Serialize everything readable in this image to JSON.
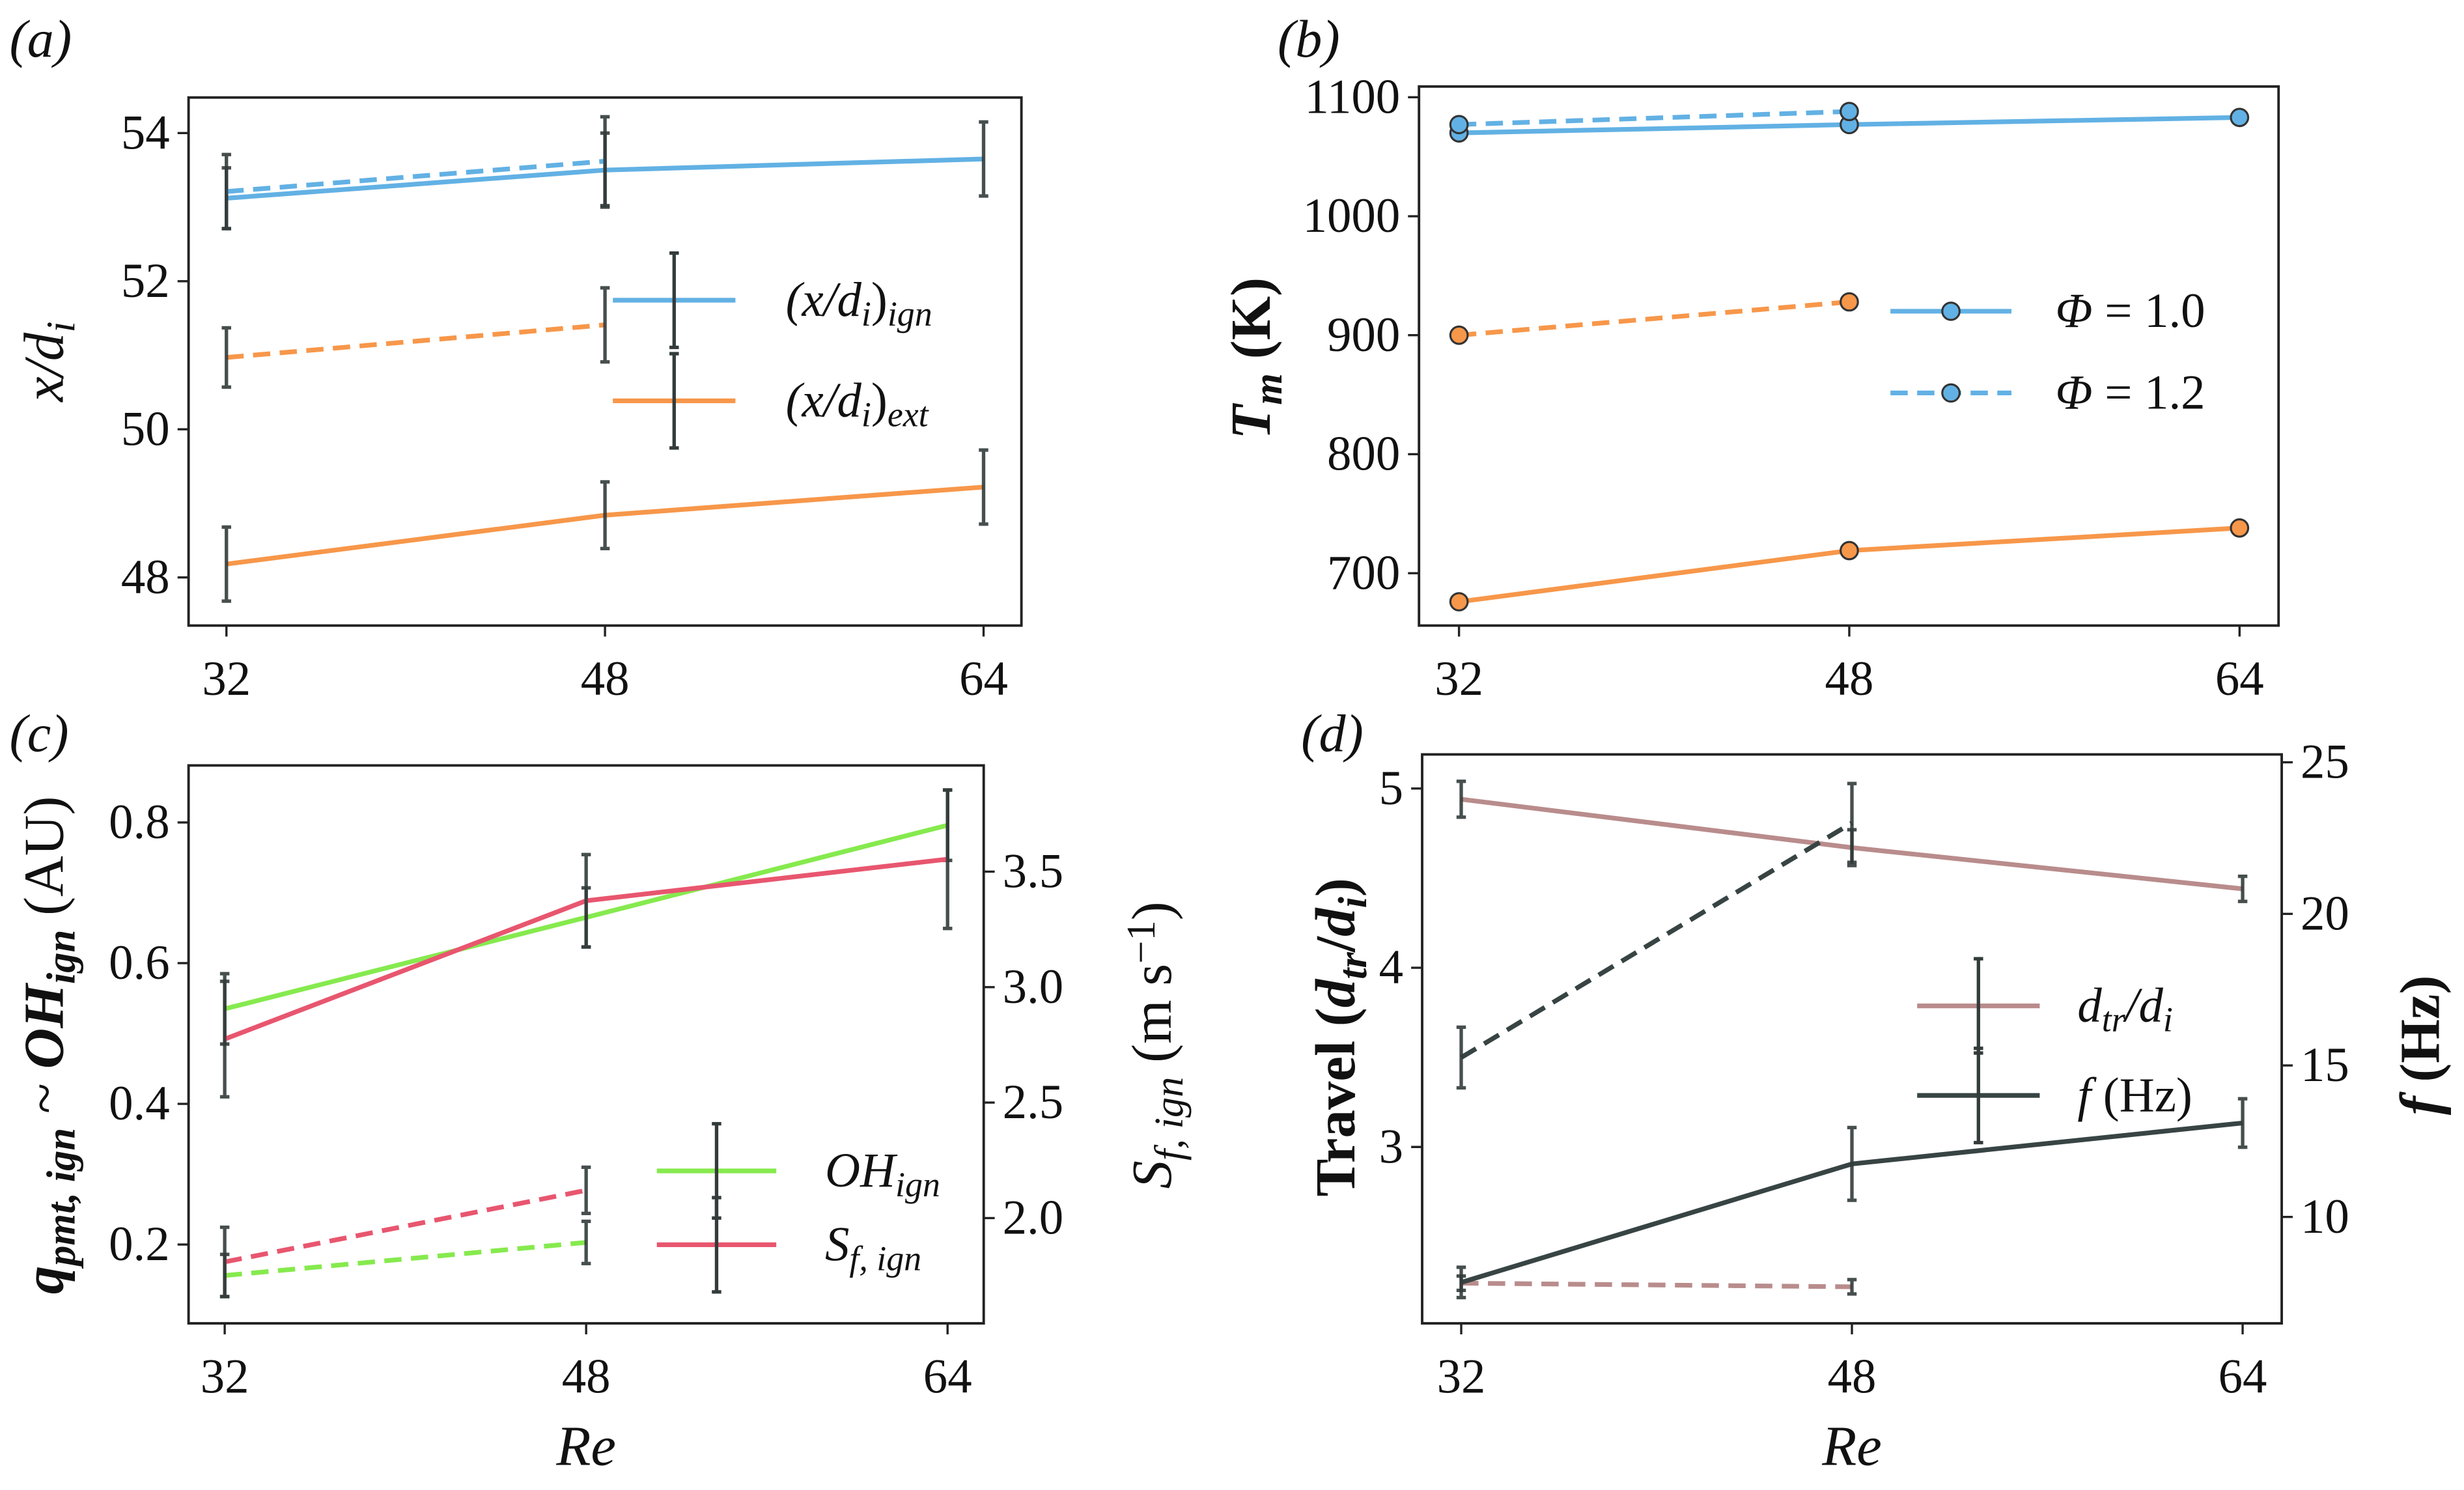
{
  "colors": {
    "blue": "#62b1e4",
    "orange": "#f7974a",
    "green": "#86ea4e",
    "red": "#e8566f",
    "pink": "#b98c8c",
    "dark": "#384444",
    "errorbar": "#333b3b",
    "marker_edge": "#333333"
  },
  "chart_data": [
    {
      "type": "line",
      "panel_label": "(a)",
      "ylabel": [
        {
          "t": "x/d",
          "i": true
        },
        {
          "t": "i",
          "sub": true,
          "i": true
        }
      ],
      "xlabel": [],
      "xlim": [
        30.4,
        65.6
      ],
      "ylim": [
        47.35,
        54.48
      ],
      "xticks": [
        32,
        48,
        64
      ],
      "yticks": [
        48,
        50,
        52,
        54
      ],
      "grid": false,
      "legend_position": "center-right",
      "series": [
        {
          "name_parts": [
            {
              "t": "(x/d",
              "i": true
            },
            {
              "t": "i",
              "sub": true,
              "i": true
            },
            {
              "t": ")"
            },
            {
              "t": "ign",
              "sub": true,
              "i": true
            }
          ],
          "color": "blue",
          "dash": false,
          "x": [
            32,
            48,
            64
          ],
          "y": [
            53.12,
            53.5,
            53.65
          ],
          "err": [
            0.41,
            0.5,
            0.5
          ],
          "legend": true
        },
        {
          "color": "blue",
          "dash": true,
          "x": [
            32,
            48
          ],
          "y": [
            53.21,
            53.62
          ],
          "err": [
            0.5,
            0.6
          ]
        },
        {
          "name_parts": [
            {
              "t": "(x/d",
              "i": true
            },
            {
              "t": "i",
              "sub": true,
              "i": true
            },
            {
              "t": ")"
            },
            {
              "t": "ext",
              "sub": true,
              "i": true
            }
          ],
          "color": "orange",
          "dash": false,
          "x": [
            32,
            48,
            64
          ],
          "y": [
            48.18,
            48.84,
            49.22
          ],
          "err": [
            0.5,
            0.45,
            0.5
          ],
          "legend": true
        },
        {
          "color": "orange",
          "dash": true,
          "x": [
            32,
            48
          ],
          "y": [
            50.97,
            51.41
          ],
          "err": [
            0.4,
            0.5
          ]
        }
      ]
    },
    {
      "type": "line",
      "panel_label": "(b)",
      "ylabel": [
        {
          "t": "T",
          "i": true,
          "b": true
        },
        {
          "t": "m",
          "sub": true,
          "i": true,
          "b": true
        },
        {
          "t": " (K)",
          "b": true
        }
      ],
      "xlabel": [],
      "xlim": [
        30.36,
        65.6
      ],
      "ylim": [
        656,
        1109
      ],
      "xticks": [
        32,
        48,
        64
      ],
      "yticks": [
        700,
        800,
        900,
        1000,
        1100
      ],
      "grid": false,
      "legend_position": "center-right",
      "markers": true,
      "series": [
        {
          "name_parts": [
            {
              "t": "Φ",
              "i": true
            },
            {
              "t": " = 1.0"
            }
          ],
          "color": "blue",
          "dash": false,
          "x": [
            32,
            48,
            64
          ],
          "y": [
            1070,
            1077,
            1083
          ],
          "legend": true
        },
        {
          "name_parts": [
            {
              "t": "Φ",
              "i": true
            },
            {
              "t": " = 1.2"
            }
          ],
          "color": "blue",
          "dash": true,
          "x": [
            32,
            48
          ],
          "y": [
            1077,
            1088
          ],
          "legend": true
        },
        {
          "color": "orange",
          "dash": false,
          "x": [
            32,
            48,
            64
          ],
          "y": [
            676,
            719,
            738
          ]
        },
        {
          "color": "orange",
          "dash": true,
          "x": [
            32,
            48
          ],
          "y": [
            900,
            928
          ]
        }
      ]
    },
    {
      "type": "line",
      "panel_label": "(c)",
      "ylabel": [
        {
          "t": "q",
          "i": true,
          "b": true
        },
        {
          "t": "pmt, ign",
          "sub": true,
          "i": true,
          "b": true
        },
        {
          "t": " ~ "
        },
        {
          "t": "OH",
          "i": true,
          "b": true
        },
        {
          "t": "ign",
          "sub": true,
          "i": true,
          "b": true
        },
        {
          "t": " (AU)"
        }
      ],
      "ylabel_right": [
        {
          "t": "S",
          "i": true
        },
        {
          "t": "f, ign",
          "sub": true,
          "i": true
        },
        {
          "t": " (m s"
        },
        {
          "t": "−1",
          "sup": true
        },
        {
          "t": ")"
        }
      ],
      "xlabel": [
        {
          "t": "Re",
          "i": true
        }
      ],
      "xlim": [
        30.4,
        65.6
      ],
      "ylim": [
        0.088,
        0.881
      ],
      "ylim_right": [
        1.544,
        3.96
      ],
      "xticks": [
        32,
        48,
        64
      ],
      "yticks": [
        0.2,
        0.4,
        0.6,
        0.8
      ],
      "yticks_right": [
        2.0,
        2.5,
        3.0,
        3.5
      ],
      "ytick_labels": [
        "0.2",
        "0.4",
        "0.6",
        "0.8"
      ],
      "ytick_labels_right": [
        "2.0",
        "2.5",
        "3.0",
        "3.5"
      ],
      "grid": false,
      "legend_position": "lower-right",
      "series": [
        {
          "name_parts": [
            {
              "t": "OH",
              "i": true
            },
            {
              "t": "ign",
              "sub": true,
              "i": true
            }
          ],
          "color": "green",
          "dash": false,
          "axis": "left",
          "x": [
            32,
            48,
            64
          ],
          "y": [
            0.535,
            0.665,
            0.796
          ],
          "err": [
            0.05,
            0.042,
            0.05
          ],
          "legend": true
        },
        {
          "color": "green",
          "dash": true,
          "axis": "left",
          "x": [
            32,
            48
          ],
          "y": [
            0.156,
            0.203
          ],
          "err": [
            0.03,
            0.03
          ]
        },
        {
          "name_parts": [
            {
              "t": "S",
              "i": true
            },
            {
              "t": "f, ign",
              "sub": true,
              "i": true
            }
          ],
          "color": "red",
          "dash": false,
          "axis": "right",
          "x": [
            32,
            48,
            64
          ],
          "y": [
            2.775,
            3.374,
            3.554
          ],
          "err": [
            0.25,
            0.2,
            0.3
          ],
          "legend": true
        },
        {
          "color": "red",
          "dash": true,
          "axis": "right",
          "x": [
            32,
            48
          ],
          "y": [
            1.81,
            2.12
          ],
          "err": [
            0.15,
            0.1
          ]
        }
      ]
    },
    {
      "type": "line",
      "panel_label": "(d)",
      "ylabel": [
        {
          "t": "Travel (",
          "b": true
        },
        {
          "t": "d",
          "i": true,
          "b": true
        },
        {
          "t": "tr",
          "sub": true,
          "i": true,
          "b": true
        },
        {
          "t": "/",
          "b": true
        },
        {
          "t": "d",
          "i": true,
          "b": true
        },
        {
          "t": "i",
          "sub": true,
          "i": true,
          "b": true
        },
        {
          "t": ")",
          "b": true
        }
      ],
      "ylabel_right": [
        {
          "t": "f",
          "i": true,
          "b": true
        },
        {
          "t": " (Hz)",
          "b": true
        }
      ],
      "xlabel": [
        {
          "t": "Re",
          "i": true
        }
      ],
      "xlim": [
        30.4,
        65.6
      ],
      "ylim": [
        2.016,
        5.19
      ],
      "ylim_right": [
        6.49,
        25.26
      ],
      "xticks": [
        32,
        48,
        64
      ],
      "yticks": [
        3,
        4,
        5
      ],
      "yticks_right": [
        10,
        15,
        20,
        25
      ],
      "grid": false,
      "legend_position": "center-right",
      "series": [
        {
          "name_parts": [
            {
              "t": "d",
              "i": true
            },
            {
              "t": "tr",
              "sub": true,
              "i": true
            },
            {
              "t": "/d",
              "i": true
            },
            {
              "t": "i",
              "sub": true,
              "i": true
            }
          ],
          "color": "pink",
          "dash": false,
          "axis": "left",
          "x": [
            32,
            48,
            64
          ],
          "y": [
            4.94,
            4.67,
            4.44
          ],
          "err": [
            0.1,
            0.1,
            0.07
          ],
          "legend": true
        },
        {
          "color": "pink",
          "dash": true,
          "axis": "left",
          "x": [
            32,
            48
          ],
          "y": [
            2.24,
            2.22
          ],
          "err": [
            0.04,
            0.04
          ]
        },
        {
          "name_parts": [
            {
              "t": "f",
              "i": true
            },
            {
              "t": " (Hz)"
            }
          ],
          "color": "dark",
          "dash": false,
          "axis": "right",
          "x": [
            32,
            48,
            64
          ],
          "y": [
            7.84,
            11.75,
            13.1
          ],
          "err": [
            0.5,
            1.2,
            0.8
          ],
          "legend": true
        },
        {
          "color": "dark",
          "dash": true,
          "axis": "right",
          "x": [
            32,
            48
          ],
          "y": [
            15.26,
            23.0
          ],
          "err": [
            1.0,
            1.3
          ]
        }
      ]
    }
  ]
}
